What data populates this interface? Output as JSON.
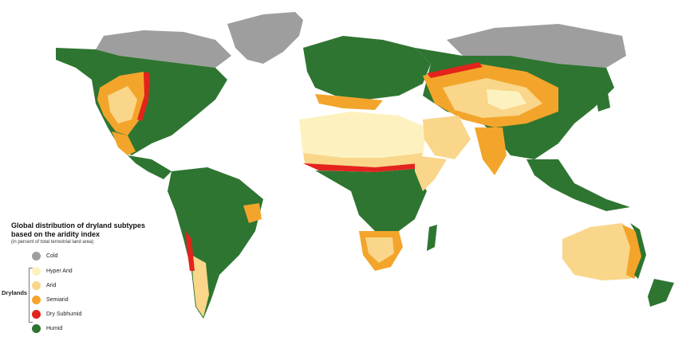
{
  "legend": {
    "title_line1": "Global distribution of dryland subtypes",
    "title_line2": "based on the aridity index",
    "subtitle": "(in percent of total terrestrial land area)",
    "group_label": "Drylands",
    "items": [
      {
        "label": "Cold",
        "color": "#9e9e9e"
      },
      {
        "label": "Hyper Arid",
        "color": "#fdf2bf"
      },
      {
        "label": "Arid",
        "color": "#f9d68a"
      },
      {
        "label": "Semiarid",
        "color": "#f3a52b"
      },
      {
        "label": "Dry Subhumid",
        "color": "#e3231c"
      },
      {
        "label": "Humid",
        "color": "#2e7531"
      }
    ]
  },
  "colors": {
    "cold": "#9e9e9e",
    "hyper_arid": "#fdf2bf",
    "arid": "#f9d68a",
    "semiarid": "#f3a52b",
    "dry_subhumid": "#e3231c",
    "humid": "#2e7531"
  }
}
